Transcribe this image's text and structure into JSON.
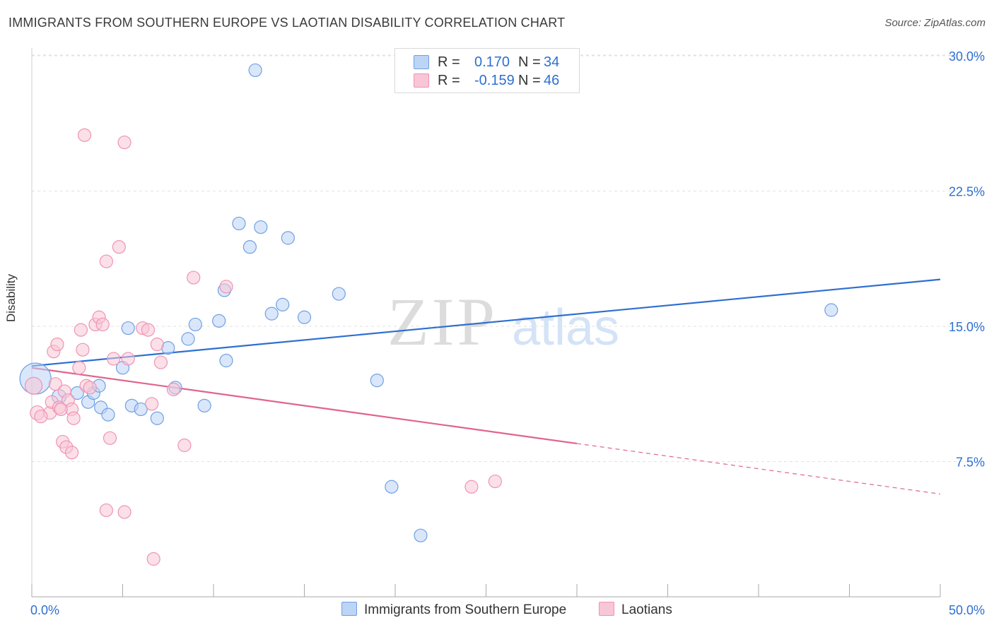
{
  "title": "IMMIGRANTS FROM SOUTHERN EUROPE VS LAOTIAN DISABILITY CORRELATION CHART",
  "source": "Source: ZipAtlas.com",
  "watermark": {
    "zip": "ZIP",
    "atlas": "atlas"
  },
  "legend": {
    "r_label": "R =",
    "n_label": "N =",
    "series1": {
      "r": "0.170",
      "n": "34"
    },
    "series2": {
      "r": "-0.159",
      "n": "46"
    }
  },
  "chart_data": {
    "type": "scatter",
    "xlabel": "",
    "ylabel": "Disability",
    "xlim": [
      0,
      50
    ],
    "ylim": [
      0,
      30
    ],
    "x_tick_labels": [
      "0.0%",
      "50.0%"
    ],
    "y_ticks": [
      7.5,
      15.0,
      22.5,
      30.0
    ],
    "y_tick_labels": [
      "7.5%",
      "15.0%",
      "22.5%",
      "30.0%"
    ],
    "grid": true,
    "series": [
      {
        "name": "Immigrants from Southern Europe",
        "color": "#6fa0e3",
        "fill": "#bcd4f5",
        "line_color": "#2e6fd1",
        "r": 0.17,
        "n": 34,
        "trend": {
          "x0": 0,
          "y0": 12.8,
          "x1": 50,
          "y1": 17.6,
          "dashed_from": null
        },
        "points": [
          [
            0.2,
            12.1,
            22
          ],
          [
            1.5,
            11.1,
            10
          ],
          [
            2.5,
            11.3,
            9
          ],
          [
            3.1,
            10.8,
            9
          ],
          [
            3.4,
            11.3,
            9
          ],
          [
            3.7,
            11.7,
            9
          ],
          [
            3.8,
            10.5,
            9
          ],
          [
            4.2,
            10.1,
            9
          ],
          [
            5.0,
            12.7,
            9
          ],
          [
            5.5,
            10.6,
            9
          ],
          [
            6.0,
            10.4,
            9
          ],
          [
            6.9,
            9.9,
            9
          ],
          [
            7.5,
            13.8,
            9
          ],
          [
            7.9,
            11.6,
            9
          ],
          [
            8.6,
            14.3,
            9
          ],
          [
            9.0,
            15.1,
            9
          ],
          [
            9.5,
            10.6,
            9
          ],
          [
            10.3,
            15.3,
            9
          ],
          [
            10.6,
            17.0,
            9
          ],
          [
            10.7,
            13.1,
            9
          ],
          [
            11.4,
            20.7,
            9
          ],
          [
            12.0,
            19.4,
            9
          ],
          [
            12.3,
            29.2,
            9
          ],
          [
            12.6,
            20.5,
            9
          ],
          [
            13.2,
            15.7,
            9
          ],
          [
            13.8,
            16.2,
            9
          ],
          [
            14.1,
            19.9,
            9
          ],
          [
            15.0,
            15.5,
            9
          ],
          [
            16.9,
            16.8,
            9
          ],
          [
            19.0,
            12.0,
            9
          ],
          [
            19.8,
            6.1,
            9
          ],
          [
            21.4,
            3.4,
            9
          ],
          [
            44.0,
            15.9,
            9
          ],
          [
            5.3,
            14.9,
            9
          ]
        ]
      },
      {
        "name": "Laotians",
        "color": "#ef93b3",
        "fill": "#f8c6d6",
        "line_color": "#e0648e",
        "r": -0.159,
        "n": 46,
        "trend": {
          "x0": 0,
          "y0": 12.7,
          "x1": 50,
          "y1": 5.7,
          "dashed_from": 30
        },
        "points": [
          [
            0.1,
            11.7,
            12
          ],
          [
            0.3,
            10.2,
            10
          ],
          [
            1.0,
            10.2,
            9
          ],
          [
            1.1,
            10.8,
            9
          ],
          [
            1.3,
            11.8,
            9
          ],
          [
            1.5,
            10.5,
            9
          ],
          [
            1.8,
            11.4,
            9
          ],
          [
            2.0,
            10.9,
            9
          ],
          [
            2.2,
            10.4,
            9
          ],
          [
            2.3,
            9.9,
            9
          ],
          [
            1.2,
            13.6,
            9
          ],
          [
            1.4,
            14.0,
            9
          ],
          [
            1.7,
            8.6,
            9
          ],
          [
            1.9,
            8.3,
            9
          ],
          [
            2.2,
            8.0,
            9
          ],
          [
            2.6,
            12.7,
            9
          ],
          [
            2.8,
            13.7,
            9
          ],
          [
            2.7,
            14.8,
            9
          ],
          [
            3.0,
            11.7,
            9
          ],
          [
            3.2,
            11.6,
            9
          ],
          [
            3.5,
            15.1,
            9
          ],
          [
            3.7,
            15.5,
            9
          ],
          [
            3.9,
            15.1,
            9
          ],
          [
            4.1,
            18.6,
            9
          ],
          [
            4.5,
            13.2,
            9
          ],
          [
            4.8,
            19.4,
            9
          ],
          [
            5.1,
            25.2,
            9
          ],
          [
            5.3,
            13.2,
            9
          ],
          [
            2.9,
            25.6,
            9
          ],
          [
            6.1,
            14.9,
            9
          ],
          [
            6.4,
            14.8,
            9
          ],
          [
            6.6,
            10.7,
            9
          ],
          [
            6.9,
            14.0,
            9
          ],
          [
            7.1,
            13.0,
            9
          ],
          [
            7.8,
            11.5,
            9
          ],
          [
            8.4,
            8.4,
            9
          ],
          [
            8.9,
            17.7,
            9
          ],
          [
            10.7,
            17.2,
            9
          ],
          [
            4.1,
            4.8,
            9
          ],
          [
            5.1,
            4.7,
            9
          ],
          [
            4.3,
            8.8,
            9
          ],
          [
            6.7,
            2.1,
            9
          ],
          [
            24.2,
            6.1,
            9
          ],
          [
            25.5,
            6.4,
            9
          ],
          [
            1.6,
            10.4,
            9
          ],
          [
            0.5,
            10.0,
            9
          ]
        ]
      }
    ]
  }
}
